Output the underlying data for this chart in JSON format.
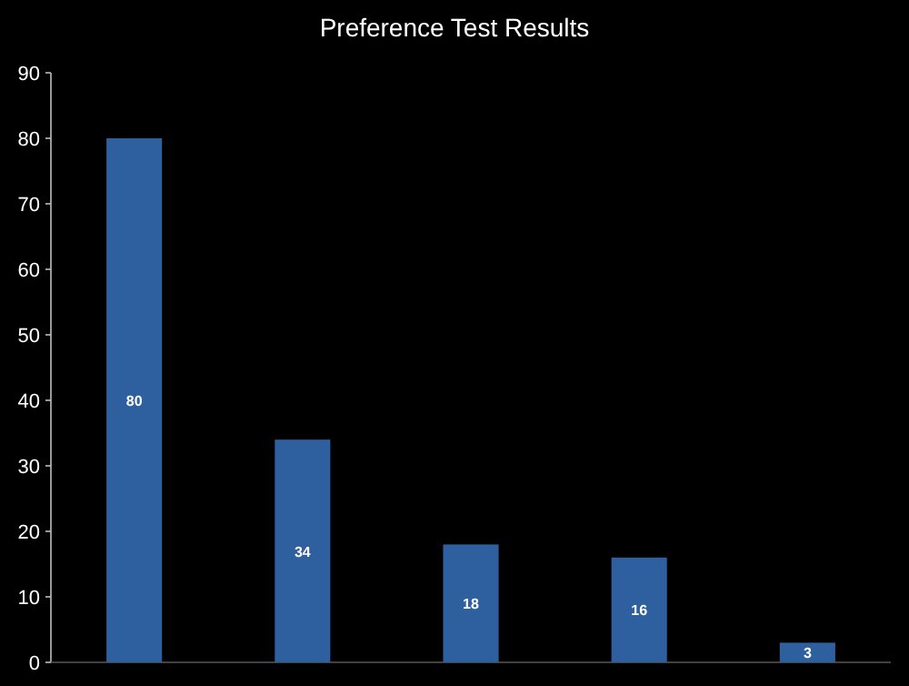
{
  "chart_data": {
    "type": "bar",
    "title": "Preference Test Results",
    "categories": [
      null,
      null,
      null,
      null,
      null
    ],
    "values": [
      80,
      34,
      18,
      16,
      3
    ],
    "color": "#2e5f9e",
    "data_labels": true,
    "ylim": [
      0,
      90
    ],
    "yticks": [
      0,
      10,
      20,
      30,
      40,
      50,
      60,
      70,
      80,
      90
    ]
  }
}
